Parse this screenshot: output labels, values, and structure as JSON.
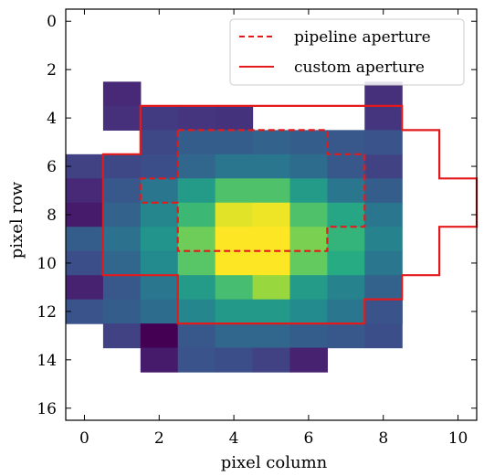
{
  "chart_data": {
    "type": "heatmap",
    "xlabel": "pixel column",
    "ylabel": "pixel row",
    "xlim": [
      -0.5,
      10.5
    ],
    "ylim": [
      16.5,
      -0.5
    ],
    "x_ticks": [
      0,
      2,
      4,
      6,
      8,
      10
    ],
    "y_ticks": [
      0,
      2,
      4,
      6,
      8,
      10,
      12,
      14,
      16
    ],
    "colormap": "viridis",
    "value_range": [
      0,
      1
    ],
    "cells": [
      [
        1,
        3,
        0.12
      ],
      [
        1,
        4,
        0.14
      ],
      [
        2,
        4,
        0.18
      ],
      [
        3,
        4,
        0.16
      ],
      [
        4,
        4,
        0.15
      ],
      [
        2,
        5,
        0.22
      ],
      [
        3,
        5,
        0.3
      ],
      [
        4,
        5,
        0.3
      ],
      [
        5,
        5,
        0.32
      ],
      [
        6,
        5,
        0.3
      ],
      [
        7,
        5,
        0.28
      ],
      [
        0,
        6,
        0.2
      ],
      [
        1,
        6,
        0.22
      ],
      [
        2,
        6,
        0.24
      ],
      [
        3,
        6,
        0.34
      ],
      [
        4,
        6,
        0.4
      ],
      [
        5,
        6,
        0.4
      ],
      [
        6,
        6,
        0.36
      ],
      [
        7,
        6,
        0.28
      ],
      [
        8,
        6,
        0.2
      ],
      [
        0,
        7,
        0.12
      ],
      [
        1,
        7,
        0.28
      ],
      [
        2,
        7,
        0.4
      ],
      [
        3,
        7,
        0.55
      ],
      [
        4,
        7,
        0.72
      ],
      [
        5,
        7,
        0.72
      ],
      [
        6,
        7,
        0.55
      ],
      [
        7,
        7,
        0.4
      ],
      [
        8,
        7,
        0.3
      ],
      [
        0,
        8,
        0.08
      ],
      [
        1,
        8,
        0.32
      ],
      [
        2,
        8,
        0.46
      ],
      [
        3,
        8,
        0.68
      ],
      [
        4,
        8,
        0.96
      ],
      [
        5,
        8,
        0.98
      ],
      [
        6,
        8,
        0.72
      ],
      [
        7,
        8,
        0.6
      ],
      [
        8,
        8,
        0.4
      ],
      [
        0,
        9,
        0.3
      ],
      [
        1,
        9,
        0.38
      ],
      [
        2,
        9,
        0.52
      ],
      [
        3,
        9,
        0.78
      ],
      [
        4,
        9,
        1.0
      ],
      [
        5,
        9,
        1.0
      ],
      [
        6,
        9,
        0.8
      ],
      [
        7,
        9,
        0.66
      ],
      [
        8,
        9,
        0.45
      ],
      [
        0,
        10,
        0.24
      ],
      [
        1,
        10,
        0.34
      ],
      [
        2,
        10,
        0.48
      ],
      [
        3,
        10,
        0.74
      ],
      [
        4,
        10,
        1.0
      ],
      [
        5,
        10,
        1.0
      ],
      [
        6,
        10,
        0.76
      ],
      [
        7,
        10,
        0.62
      ],
      [
        8,
        10,
        0.4
      ],
      [
        0,
        11,
        0.1
      ],
      [
        1,
        11,
        0.28
      ],
      [
        2,
        11,
        0.4
      ],
      [
        3,
        11,
        0.55
      ],
      [
        4,
        11,
        0.7
      ],
      [
        5,
        11,
        0.85
      ],
      [
        6,
        11,
        0.55
      ],
      [
        7,
        11,
        0.45
      ],
      [
        8,
        11,
        0.32
      ],
      [
        0,
        12,
        0.26
      ],
      [
        1,
        12,
        0.3
      ],
      [
        2,
        12,
        0.36
      ],
      [
        3,
        12,
        0.46
      ],
      [
        4,
        12,
        0.54
      ],
      [
        5,
        12,
        0.54
      ],
      [
        6,
        12,
        0.48
      ],
      [
        7,
        12,
        0.4
      ],
      [
        8,
        12,
        0.26
      ],
      [
        1,
        13,
        0.2
      ],
      [
        2,
        13,
        0.0
      ],
      [
        3,
        13,
        0.28
      ],
      [
        4,
        13,
        0.34
      ],
      [
        5,
        13,
        0.34
      ],
      [
        6,
        13,
        0.3
      ],
      [
        7,
        13,
        0.28
      ],
      [
        8,
        13,
        0.24
      ],
      [
        2,
        14,
        0.08
      ],
      [
        3,
        14,
        0.26
      ],
      [
        4,
        14,
        0.24
      ],
      [
        5,
        14,
        0.2
      ],
      [
        6,
        14,
        0.1
      ],
      [
        8,
        3,
        0.14
      ],
      [
        8,
        4,
        0.16
      ],
      [
        8,
        5,
        0.26
      ],
      [
        8,
        12,
        0.26
      ]
    ],
    "pipeline_aperture_label": "pipeline aperture",
    "custom_aperture_label": "custom aperture",
    "pipeline_aperture_path": [
      [
        2.5,
        4.5
      ],
      [
        6.5,
        4.5
      ],
      [
        6.5,
        5.5
      ],
      [
        7.5,
        5.5
      ],
      [
        7.5,
        8.5
      ],
      [
        6.5,
        8.5
      ],
      [
        6.5,
        9.5
      ],
      [
        2.5,
        9.5
      ],
      [
        2.5,
        7.5
      ],
      [
        1.5,
        7.5
      ],
      [
        1.5,
        6.5
      ],
      [
        2.5,
        6.5
      ],
      [
        2.5,
        4.5
      ]
    ],
    "custom_aperture_path": [
      [
        1.5,
        3.5
      ],
      [
        8.5,
        3.5
      ],
      [
        8.5,
        4.5
      ],
      [
        9.5,
        4.5
      ],
      [
        9.5,
        6.5
      ],
      [
        10.5,
        6.5
      ],
      [
        10.5,
        8.5
      ],
      [
        9.5,
        8.5
      ],
      [
        9.5,
        10.5
      ],
      [
        8.5,
        10.5
      ],
      [
        8.5,
        11.5
      ],
      [
        7.5,
        11.5
      ],
      [
        7.5,
        12.5
      ],
      [
        2.5,
        12.5
      ],
      [
        2.5,
        10.5
      ],
      [
        0.5,
        10.5
      ],
      [
        0.5,
        5.5
      ],
      [
        1.5,
        5.5
      ],
      [
        1.5,
        3.5
      ]
    ],
    "legend_position": "top-right"
  }
}
